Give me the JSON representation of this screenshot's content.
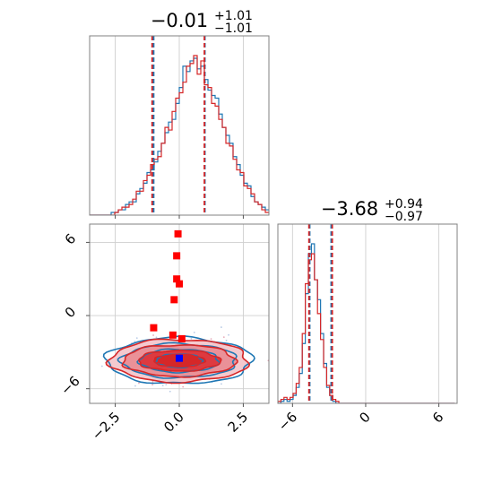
{
  "chart_data": {
    "type": "corner",
    "parameters": [
      {
        "title": {
          "main": "−0.01",
          "sup": "+1.01",
          "sub": "−1.01"
        }
      },
      {
        "title": {
          "main": "−3.68",
          "sup": "+0.94",
          "sub": "−0.97"
        }
      }
    ],
    "series": [
      {
        "color": "#1f77b4"
      },
      {
        "color": "#d62728"
      }
    ],
    "ranges": {
      "p0": [
        -3.5,
        3.5
      ],
      "p1": [
        -7.2,
        7.5
      ]
    },
    "ticks": {
      "p0": [
        -2.5,
        0.0,
        2.5
      ],
      "p0_labels": [
        "−2.5",
        "0.0",
        "2.5"
      ],
      "p1": [
        -6,
        0,
        6
      ],
      "p1_labels": [
        "−6",
        "0",
        "6"
      ]
    },
    "quantile_lines": {
      "p0": {
        "series0": [
          -1.0,
          1.0
        ],
        "series1": [
          -1.06,
          0.98
        ]
      },
      "p1": {
        "series0": [
          -4.59,
          -2.83
        ],
        "series1": [
          -4.65,
          -2.74
        ]
      }
    },
    "hist_p0": {
      "edges_start": -3.5,
      "bin_width": 0.14,
      "series0": [
        0,
        0,
        0,
        0,
        0,
        0,
        1,
        1,
        2,
        2,
        4,
        5,
        5,
        8,
        10,
        12,
        16,
        17,
        20,
        24,
        27,
        31,
        35,
        36,
        42,
        48,
        56,
        54,
        58,
        59,
        55,
        56,
        51,
        47,
        45,
        44,
        38,
        33,
        30,
        27,
        22,
        19,
        15,
        12,
        11,
        7,
        5,
        4,
        3,
        2
      ],
      "series1": [
        0,
        0,
        0,
        0,
        0,
        0,
        0,
        1,
        2,
        3,
        3,
        4,
        6,
        9,
        9,
        13,
        15,
        19,
        21,
        22,
        27,
        33,
        32,
        39,
        44,
        46,
        50,
        56,
        57,
        60,
        53,
        58,
        49,
        48,
        42,
        41,
        36,
        33,
        27,
        26,
        21,
        17,
        16,
        11,
        10,
        8,
        5,
        4,
        2,
        1
      ]
    },
    "hist_p1": {
      "edges_start": -7.2,
      "bin_width": 0.25,
      "series0": [
        0,
        1,
        2,
        1,
        2,
        4,
        8,
        15,
        30,
        55,
        75,
        80,
        62,
        52,
        35,
        20,
        8,
        4,
        1,
        0,
        0,
        0,
        0,
        0,
        0,
        0,
        0,
        0,
        0,
        0,
        0,
        0,
        0,
        0,
        0,
        0,
        0,
        0,
        0,
        0,
        0,
        0,
        0,
        0,
        0,
        0,
        0,
        0,
        0,
        0,
        0,
        0,
        0,
        0,
        0,
        0,
        0,
        0
      ],
      "series1": [
        1,
        2,
        3,
        2,
        3,
        5,
        10,
        18,
        35,
        60,
        72,
        75,
        62,
        45,
        32,
        18,
        9,
        4,
        2,
        1,
        0,
        0,
        0,
        0,
        0,
        0,
        0,
        0,
        0,
        0,
        0,
        0,
        0,
        0,
        0,
        0,
        0,
        0,
        0,
        0,
        0,
        0,
        0,
        0,
        0,
        0,
        0,
        0,
        0,
        0,
        0,
        0,
        0,
        0,
        0,
        0,
        0,
        0
      ]
    },
    "contours_2d": {
      "center": [
        0.0,
        -3.7
      ],
      "series0_radii": [
        [
          0.9,
          0.55
        ],
        [
          1.55,
          0.95
        ],
        [
          2.25,
          1.4
        ],
        [
          2.85,
          1.9
        ]
      ],
      "series1_radii": [
        [
          1.0,
          0.5
        ],
        [
          1.6,
          0.85
        ],
        [
          2.2,
          1.3
        ],
        [
          2.7,
          1.75
        ]
      ]
    },
    "markers_2d": [
      {
        "series": 1,
        "x": -0.05,
        "y": 6.7
      },
      {
        "series": 1,
        "x": -0.1,
        "y": 4.9
      },
      {
        "series": 1,
        "x": -0.1,
        "y": 3.0
      },
      {
        "series": 1,
        "x": 0.0,
        "y": 2.6
      },
      {
        "series": 1,
        "x": -0.2,
        "y": 1.3
      },
      {
        "series": 1,
        "x": -1.0,
        "y": -1.0
      },
      {
        "series": 1,
        "x": -0.25,
        "y": -1.6
      },
      {
        "series": 1,
        "x": 0.1,
        "y": -1.9
      },
      {
        "series": 0,
        "x": 0.0,
        "y": -3.5
      }
    ]
  }
}
